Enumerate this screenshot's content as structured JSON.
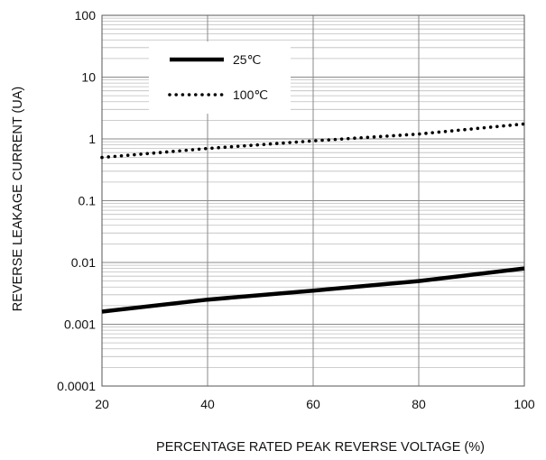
{
  "chart_data": {
    "type": "line",
    "title": "",
    "xlabel": "PERCENTAGE RATED PEAK REVERSE VOLTAGE (%)",
    "ylabel": "REVERSE LEAKAGE CURRENT (UA)",
    "x_scale": "linear",
    "y_scale": "log",
    "xlim": [
      20,
      100
    ],
    "ylim": [
      0.0001,
      100
    ],
    "x_ticks": [
      20,
      40,
      60,
      80,
      100
    ],
    "x_tick_labels": [
      "20",
      "40",
      "60",
      "80",
      "100"
    ],
    "y_ticks": [
      0.0001,
      0.001,
      0.01,
      0.1,
      1,
      10,
      100
    ],
    "y_tick_labels": [
      "0.0001",
      "0.001",
      "0.01",
      "0.1",
      "1",
      "10",
      "100"
    ],
    "grid": true,
    "legend_position": "top-left",
    "series": [
      {
        "name": "25℃",
        "style": "solid",
        "color": "#000000",
        "x": [
          20,
          40,
          60,
          80,
          100
        ],
        "y": [
          0.0016,
          0.0025,
          0.0035,
          0.005,
          0.008
        ]
      },
      {
        "name": "100℃",
        "style": "dotted",
        "color": "#000000",
        "x": [
          20,
          40,
          60,
          80,
          100
        ],
        "y": [
          0.5,
          0.7,
          0.93,
          1.2,
          1.75
        ]
      }
    ]
  }
}
